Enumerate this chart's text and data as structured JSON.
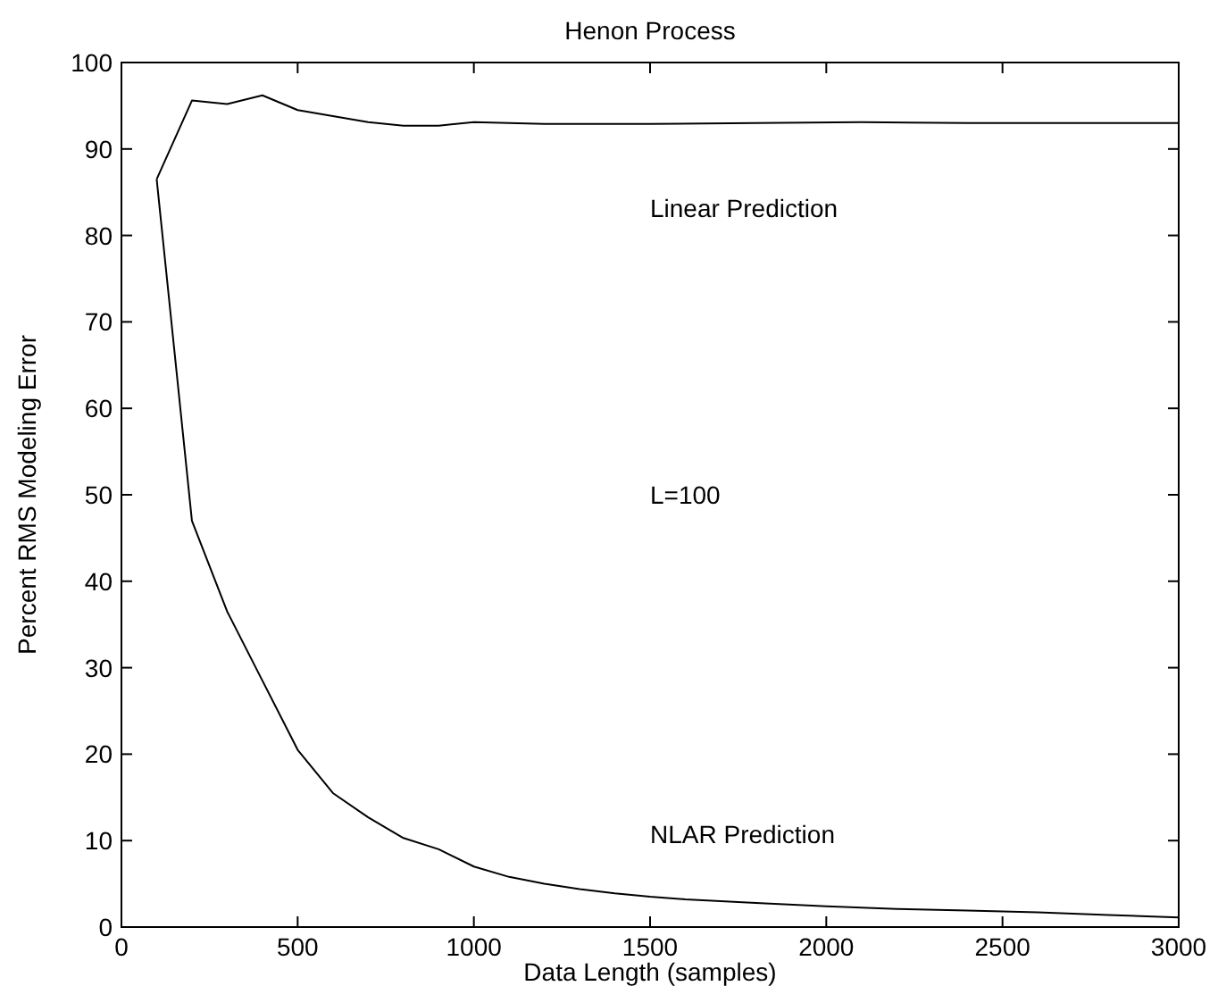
{
  "chart_data": {
    "type": "line",
    "title": "Henon Process",
    "xlabel": "Data Length (samples)",
    "ylabel": "Percent RMS Modeling Error",
    "annotations": [
      "L=100"
    ],
    "xlim": [
      0,
      3000
    ],
    "xticks": [
      0,
      500,
      1000,
      1500,
      2000,
      2500,
      3000
    ],
    "ylim": [
      0,
      100
    ],
    "yticks": [
      0,
      10,
      20,
      30,
      40,
      50,
      60,
      70,
      80,
      90,
      100
    ],
    "grid": false,
    "series": [
      {
        "name": "Linear Prediction",
        "color": "#000000",
        "x": [
          100,
          200,
          300,
          400,
          500,
          600,
          700,
          800,
          900,
          1000,
          1200,
          1500,
          1800,
          2100,
          2400,
          2700,
          3000
        ],
        "values": [
          86.5,
          95.6,
          95.2,
          96.2,
          94.5,
          93.8,
          93.1,
          92.7,
          92.7,
          93.1,
          92.9,
          92.9,
          93.0,
          93.1,
          93.0,
          93.0,
          93.0
        ]
      },
      {
        "name": "NLAR Prediction",
        "color": "#000000",
        "x": [
          100,
          200,
          300,
          400,
          500,
          600,
          700,
          800,
          900,
          1000,
          1100,
          1200,
          1300,
          1400,
          1500,
          1600,
          1800,
          2000,
          2200,
          2400,
          2600,
          2800,
          3000
        ],
        "values": [
          86.5,
          47,
          36.5,
          28.5,
          20.5,
          15.5,
          12.7,
          10.3,
          9,
          7,
          5.8,
          5,
          4.4,
          3.9,
          3.5,
          3.2,
          2.8,
          2.4,
          2.1,
          1.9,
          1.7,
          1.4,
          1.1
        ]
      }
    ]
  }
}
